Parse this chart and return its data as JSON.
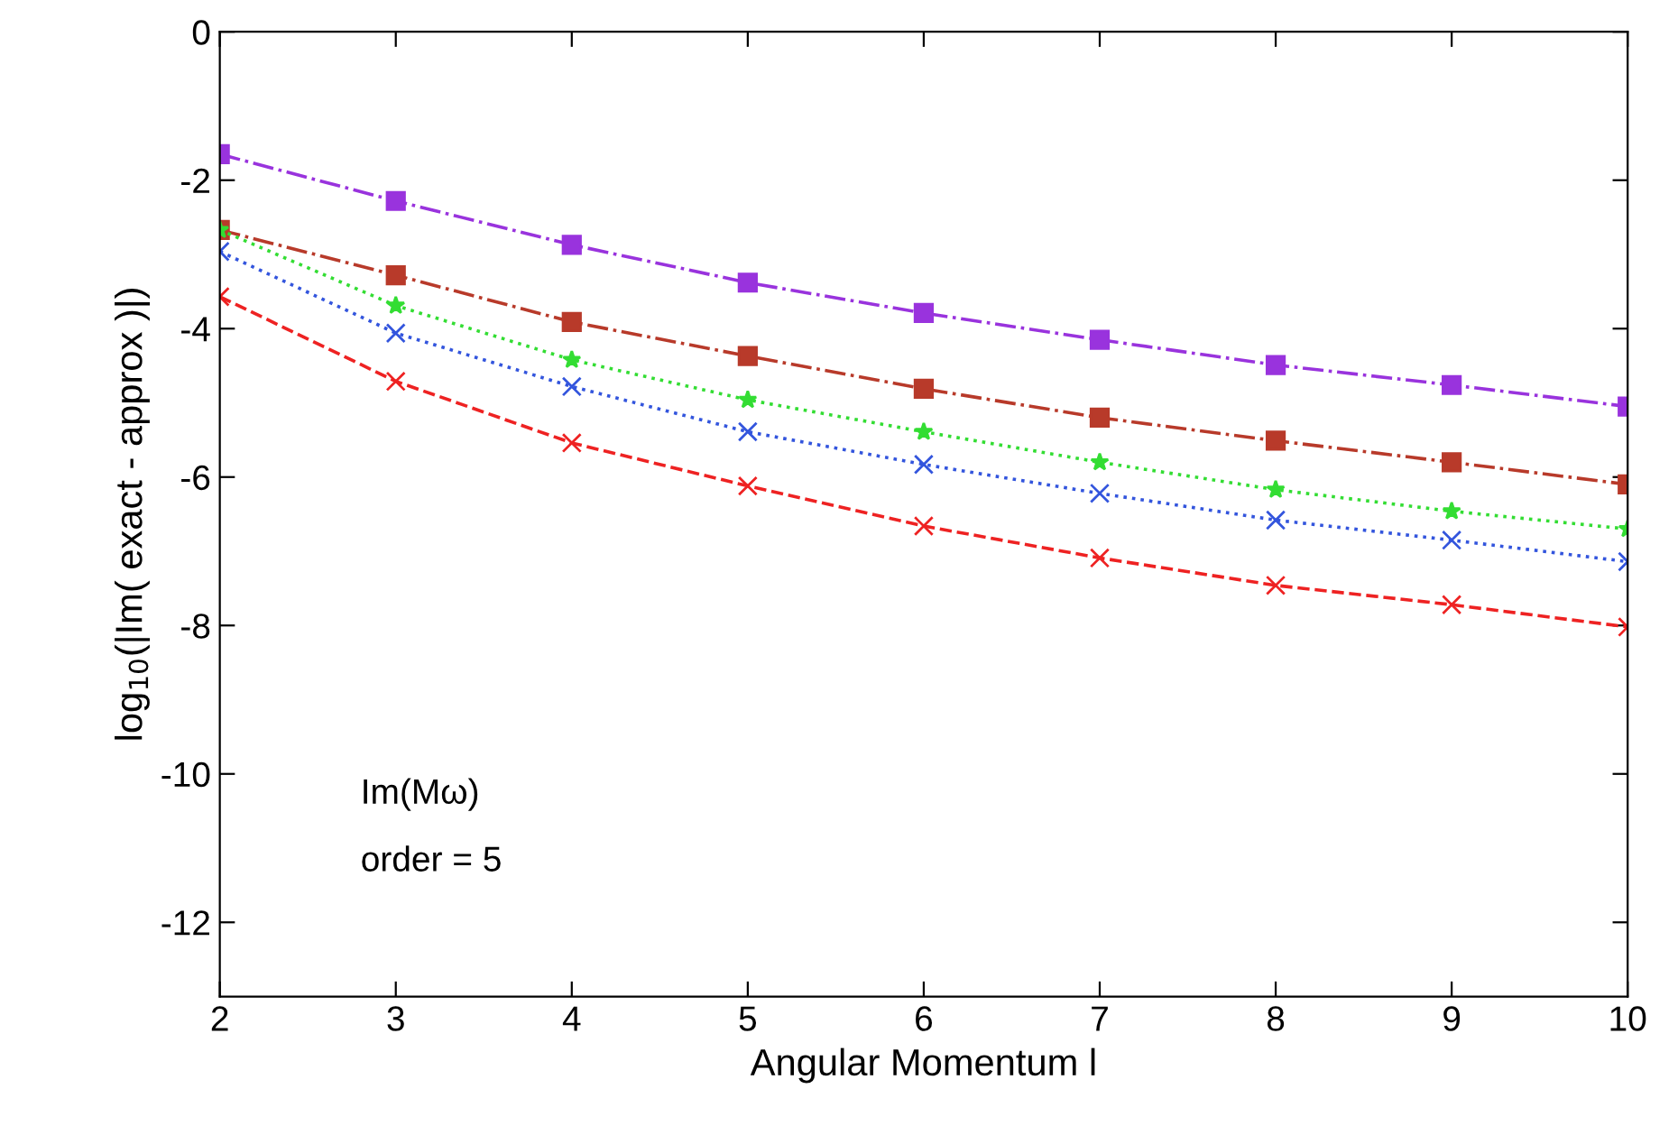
{
  "chart_data": {
    "type": "line",
    "xlabel": "Angular Momentum l",
    "ylabel": "log$_{10}$(|Im( exact - approx )|)",
    "annotations": [
      "Im(Mω)",
      "order = 5"
    ],
    "x": [
      2,
      3,
      4,
      5,
      6,
      7,
      8,
      9,
      10
    ],
    "series": [
      {
        "color": "#9933dd",
        "marker": "square",
        "line_style": "dashdot",
        "values": [
          -1.65,
          -2.28,
          -2.87,
          -3.38,
          -3.79,
          -4.15,
          -4.49,
          -4.76,
          -5.05
        ]
      },
      {
        "color": "#b83a2a",
        "marker": "square",
        "line_style": "dashdot",
        "values": [
          -2.67,
          -3.28,
          -3.91,
          -4.37,
          -4.81,
          -5.2,
          -5.51,
          -5.8,
          -6.1
        ]
      },
      {
        "color": "#33dd33",
        "marker": "star",
        "line_style": "dotted",
        "values": [
          -2.67,
          -3.69,
          -4.42,
          -4.96,
          -5.39,
          -5.8,
          -6.17,
          -6.46,
          -6.7
        ]
      },
      {
        "color": "#3355dd",
        "marker": "cross",
        "line_style": "dotted",
        "values": [
          -2.96,
          -4.06,
          -4.78,
          -5.39,
          -5.83,
          -6.22,
          -6.58,
          -6.85,
          -7.14
        ]
      },
      {
        "color": "#ee2222",
        "marker": "cross",
        "line_style": "dashed",
        "values": [
          -3.57,
          -4.71,
          -5.54,
          -6.12,
          -6.66,
          -7.09,
          -7.46,
          -7.72,
          -8.02
        ]
      }
    ],
    "xlim": [
      2,
      10
    ],
    "xticks": [
      2,
      3,
      4,
      5,
      6,
      7,
      8,
      9,
      10
    ],
    "ylim": [
      -13,
      0
    ],
    "yticks": [
      0,
      -2,
      -4,
      -6,
      -8,
      -10,
      -12
    ]
  }
}
